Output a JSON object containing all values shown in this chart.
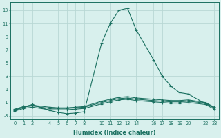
{
  "xlabel": "Humidex (Indice chaleur)",
  "bg_color": "#d8f0ed",
  "grid_color": "#b8d8d4",
  "line_color": "#1a7060",
  "xlim": [
    -0.5,
    23.5
  ],
  "ylim": [
    -3.5,
    14.2
  ],
  "yticks": [
    -3,
    -1,
    1,
    3,
    5,
    7,
    9,
    11,
    13
  ],
  "xticks": [
    0,
    1,
    2,
    4,
    5,
    6,
    7,
    8,
    10,
    11,
    12,
    13,
    14,
    16,
    17,
    18,
    19,
    20,
    22,
    23
  ],
  "series": [
    {
      "x": [
        0,
        1,
        2,
        4,
        5,
        6,
        7,
        8,
        10,
        11,
        12,
        13,
        14,
        16,
        17,
        18,
        19,
        20,
        22,
        23
      ],
      "y": [
        -2.2,
        -1.7,
        -1.3,
        -2.2,
        -2.5,
        -2.7,
        -2.6,
        -2.4,
        8.0,
        11.0,
        13.0,
        13.3,
        10.0,
        5.5,
        3.0,
        1.5,
        0.5,
        0.3,
        -1.2,
        -1.8
      ]
    },
    {
      "x": [
        0,
        1,
        2,
        4,
        5,
        6,
        7,
        8,
        10,
        11,
        12,
        13,
        14,
        16,
        17,
        18,
        19,
        20,
        22,
        23
      ],
      "y": [
        -2.0,
        -1.6,
        -1.4,
        -1.7,
        -1.8,
        -1.8,
        -1.7,
        -1.6,
        -0.8,
        -0.5,
        -0.2,
        -0.1,
        -0.3,
        -0.5,
        -0.6,
        -0.7,
        -0.7,
        -0.6,
        -1.0,
        -1.7
      ]
    },
    {
      "x": [
        0,
        1,
        2,
        4,
        5,
        6,
        7,
        8,
        10,
        11,
        12,
        13,
        14,
        16,
        17,
        18,
        19,
        20,
        22,
        23
      ],
      "y": [
        -2.1,
        -1.7,
        -1.5,
        -1.9,
        -1.9,
        -1.9,
        -1.8,
        -1.7,
        -1.0,
        -0.7,
        -0.4,
        -0.3,
        -0.5,
        -0.7,
        -0.8,
        -0.9,
        -0.9,
        -0.8,
        -1.1,
        -1.8
      ]
    },
    {
      "x": [
        0,
        1,
        2,
        4,
        5,
        6,
        7,
        8,
        10,
        11,
        12,
        13,
        14,
        16,
        17,
        18,
        19,
        20,
        22,
        23
      ],
      "y": [
        -2.3,
        -1.9,
        -1.7,
        -2.1,
        -2.1,
        -2.1,
        -2.0,
        -1.9,
        -1.2,
        -0.9,
        -0.6,
        -0.5,
        -0.7,
        -0.9,
        -1.0,
        -1.1,
        -1.1,
        -1.0,
        -1.3,
        -2.0
      ]
    }
  ]
}
